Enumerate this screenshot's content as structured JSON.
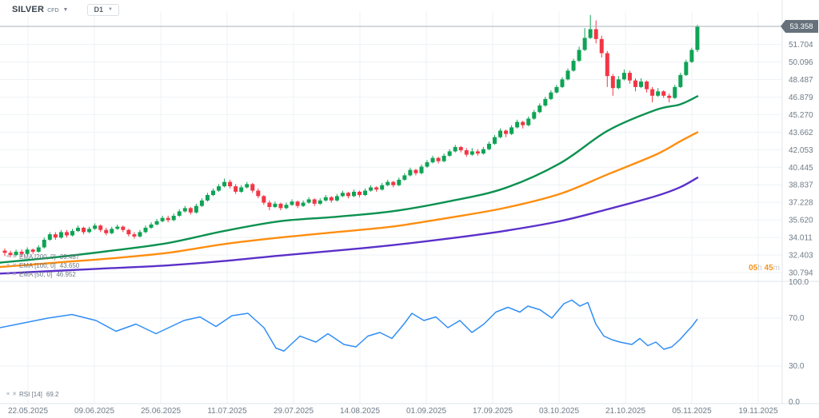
{
  "header": {
    "symbol": "SILVER",
    "instrument_type": "CFD",
    "symbol_caret": "▼",
    "timeframe": "D1",
    "timeframe_caret": "▼"
  },
  "countdown": {
    "hours": "05",
    "hours_unit": "h",
    "minutes": "45",
    "minutes_unit": "m"
  },
  "price_tag": {
    "value": "53.358",
    "bg_color": "#66717b"
  },
  "legend": {
    "menu_icon": "≡",
    "close_icon": "✕",
    "ema_rows": [
      {
        "label": "EMA [200, 0]",
        "value": "39.487"
      },
      {
        "label": "EMA [100, 0]",
        "value": "43.650"
      },
      {
        "label": "EMA [50, 0]",
        "value": "46.952"
      }
    ],
    "rsi_row": {
      "label": "RSI [14]",
      "value": "69.2"
    }
  },
  "chart_data": {
    "type": "candlestick",
    "symbol": "SILVER CFD",
    "timeframe": "D1",
    "colors": {
      "up": "#0fa355",
      "down": "#f23645",
      "grid": "#eef2f5",
      "separator": "#dfe5ea",
      "axis_text": "#6e7b87",
      "price_line": "#a7b0b8",
      "ema200": "#5b30c9",
      "ema100": "#ff8d0e",
      "ema50": "#0b9150",
      "rsi": "#2f8df5"
    },
    "current_price": 53.358,
    "price_ticks": [
      51.704,
      50.096,
      48.487,
      46.879,
      45.27,
      43.662,
      42.053,
      40.445,
      38.837,
      37.228,
      35.62,
      34.011,
      32.403,
      30.794
    ],
    "price_tick_labels": [
      "51.704",
      "50.096",
      "48.487",
      "46.879",
      "45.270",
      "43.662",
      "42.053",
      "40.445",
      "38.837",
      "37.228",
      "35.620",
      "34.011",
      "32.403",
      "30.794"
    ],
    "date_ticks": [
      "22.05.2025",
      "09.06.2025",
      "25.06.2025",
      "11.07.2025",
      "29.07.2025",
      "14.08.2025",
      "01.09.2025",
      "17.09.2025",
      "03.10.2025",
      "21.10.2025",
      "05.11.2025",
      "19.11.2025"
    ],
    "candles": [
      [
        32.8,
        33.0,
        32.3,
        32.6
      ],
      [
        32.6,
        32.8,
        32.2,
        32.4
      ],
      [
        32.4,
        32.9,
        32.3,
        32.7
      ],
      [
        32.7,
        32.9,
        32.2,
        32.5
      ],
      [
        32.5,
        33.1,
        32.4,
        32.9
      ],
      [
        32.9,
        33.0,
        32.5,
        32.7
      ],
      [
        32.7,
        33.3,
        32.6,
        33.1
      ],
      [
        33.1,
        34.0,
        33.0,
        33.8
      ],
      [
        33.8,
        34.5,
        33.7,
        34.3
      ],
      [
        34.3,
        34.5,
        33.8,
        34.0
      ],
      [
        34.0,
        34.7,
        33.9,
        34.5
      ],
      [
        34.5,
        34.7,
        34.0,
        34.2
      ],
      [
        34.2,
        34.8,
        34.1,
        34.6
      ],
      [
        34.6,
        35.1,
        34.5,
        34.9
      ],
      [
        34.9,
        35.0,
        34.3,
        34.5
      ],
      [
        34.5,
        35.0,
        34.4,
        34.8
      ],
      [
        34.8,
        35.3,
        34.7,
        35.1
      ],
      [
        35.1,
        35.2,
        34.5,
        34.7
      ],
      [
        34.7,
        34.9,
        34.2,
        34.4
      ],
      [
        34.4,
        35.0,
        34.3,
        34.8
      ],
      [
        34.8,
        35.2,
        34.7,
        35.0
      ],
      [
        35.0,
        35.1,
        34.5,
        34.7
      ],
      [
        34.7,
        34.8,
        34.1,
        34.3
      ],
      [
        34.3,
        34.5,
        33.9,
        34.1
      ],
      [
        34.1,
        34.7,
        34.0,
        34.5
      ],
      [
        34.5,
        35.1,
        34.4,
        34.9
      ],
      [
        34.9,
        35.4,
        34.8,
        35.2
      ],
      [
        35.2,
        35.7,
        35.1,
        35.5
      ],
      [
        35.5,
        36.0,
        35.4,
        35.8
      ],
      [
        35.8,
        36.0,
        35.4,
        35.6
      ],
      [
        35.6,
        36.2,
        35.5,
        36.0
      ],
      [
        36.0,
        36.6,
        35.9,
        36.4
      ],
      [
        36.4,
        36.9,
        36.3,
        36.7
      ],
      [
        36.7,
        36.8,
        36.1,
        36.3
      ],
      [
        36.3,
        37.1,
        36.2,
        36.9
      ],
      [
        36.9,
        37.6,
        36.8,
        37.4
      ],
      [
        37.4,
        38.1,
        37.3,
        37.9
      ],
      [
        37.9,
        38.5,
        37.8,
        38.3
      ],
      [
        38.3,
        38.9,
        38.2,
        38.7
      ],
      [
        38.7,
        39.4,
        38.6,
        39.1
      ],
      [
        39.1,
        39.3,
        38.5,
        38.7
      ],
      [
        38.7,
        38.9,
        38.0,
        38.2
      ],
      [
        38.2,
        38.8,
        38.1,
        38.6
      ],
      [
        38.6,
        39.1,
        38.5,
        38.9
      ],
      [
        38.9,
        39.0,
        38.1,
        38.3
      ],
      [
        38.3,
        38.5,
        37.6,
        37.8
      ],
      [
        37.8,
        37.9,
        37.0,
        37.2
      ],
      [
        37.2,
        37.4,
        36.5,
        36.8
      ],
      [
        36.8,
        37.3,
        36.7,
        37.1
      ],
      [
        37.1,
        37.2,
        36.5,
        36.7
      ],
      [
        36.7,
        37.2,
        36.6,
        37.0
      ],
      [
        37.0,
        37.5,
        36.9,
        37.3
      ],
      [
        37.3,
        37.4,
        36.7,
        36.9
      ],
      [
        36.9,
        37.4,
        36.8,
        37.2
      ],
      [
        37.2,
        37.7,
        37.1,
        37.5
      ],
      [
        37.5,
        37.6,
        36.9,
        37.1
      ],
      [
        37.1,
        37.6,
        37.0,
        37.4
      ],
      [
        37.4,
        37.9,
        37.3,
        37.7
      ],
      [
        37.7,
        37.8,
        37.2,
        37.4
      ],
      [
        37.4,
        38.0,
        37.3,
        37.8
      ],
      [
        37.8,
        38.3,
        37.7,
        38.1
      ],
      [
        38.1,
        38.2,
        37.6,
        37.8
      ],
      [
        37.8,
        38.4,
        37.7,
        38.2
      ],
      [
        38.2,
        38.3,
        37.7,
        37.9
      ],
      [
        37.9,
        38.5,
        37.8,
        38.3
      ],
      [
        38.3,
        38.8,
        38.2,
        38.6
      ],
      [
        38.6,
        38.7,
        38.2,
        38.4
      ],
      [
        38.4,
        39.0,
        38.3,
        38.8
      ],
      [
        38.8,
        39.3,
        38.7,
        39.1
      ],
      [
        39.1,
        39.2,
        38.6,
        38.8
      ],
      [
        38.8,
        39.5,
        38.7,
        39.3
      ],
      [
        39.3,
        39.9,
        39.2,
        39.7
      ],
      [
        39.7,
        40.4,
        39.6,
        40.2
      ],
      [
        40.2,
        40.3,
        39.7,
        39.9
      ],
      [
        39.9,
        40.7,
        39.8,
        40.5
      ],
      [
        40.5,
        41.1,
        40.4,
        40.9
      ],
      [
        40.9,
        41.5,
        40.8,
        41.3
      ],
      [
        41.3,
        41.4,
        40.8,
        41.0
      ],
      [
        41.0,
        41.7,
        40.9,
        41.5
      ],
      [
        41.5,
        42.1,
        41.4,
        41.9
      ],
      [
        41.9,
        42.5,
        41.8,
        42.3
      ],
      [
        42.3,
        42.4,
        41.8,
        42.0
      ],
      [
        42.0,
        42.2,
        41.4,
        41.6
      ],
      [
        41.6,
        42.2,
        41.5,
        41.9
      ],
      [
        41.9,
        42.1,
        41.5,
        41.7
      ],
      [
        41.7,
        42.3,
        41.6,
        42.1
      ],
      [
        42.1,
        42.8,
        42.0,
        42.6
      ],
      [
        42.6,
        43.4,
        42.5,
        43.2
      ],
      [
        43.2,
        44.0,
        43.1,
        43.8
      ],
      [
        43.8,
        43.9,
        43.2,
        43.5
      ],
      [
        43.5,
        44.3,
        43.4,
        44.1
      ],
      [
        44.1,
        44.8,
        44.0,
        44.6
      ],
      [
        44.6,
        44.7,
        44.0,
        44.3
      ],
      [
        44.3,
        45.1,
        44.2,
        44.9
      ],
      [
        44.9,
        45.7,
        44.8,
        45.5
      ],
      [
        45.5,
        46.3,
        45.4,
        46.1
      ],
      [
        46.1,
        46.9,
        46.0,
        46.7
      ],
      [
        46.7,
        47.5,
        46.6,
        47.3
      ],
      [
        47.3,
        48.0,
        47.2,
        47.8
      ],
      [
        47.8,
        48.7,
        47.7,
        48.5
      ],
      [
        48.5,
        49.5,
        48.4,
        49.3
      ],
      [
        49.3,
        50.4,
        49.2,
        50.2
      ],
      [
        50.2,
        51.5,
        50.1,
        51.2
      ],
      [
        51.2,
        53.2,
        51.1,
        52.3
      ],
      [
        52.3,
        54.4,
        52.2,
        53.1
      ],
      [
        53.1,
        53.9,
        51.8,
        52.2
      ],
      [
        52.2,
        52.5,
        50.5,
        50.9
      ],
      [
        50.9,
        51.1,
        47.8,
        48.8
      ],
      [
        48.8,
        49.0,
        47.0,
        47.7
      ],
      [
        47.7,
        48.8,
        47.6,
        48.5
      ],
      [
        48.5,
        49.4,
        48.4,
        49.1
      ],
      [
        49.1,
        49.3,
        48.1,
        48.4
      ],
      [
        48.4,
        48.6,
        47.4,
        47.8
      ],
      [
        47.8,
        48.6,
        47.7,
        48.3
      ],
      [
        48.3,
        48.4,
        47.3,
        47.6
      ],
      [
        47.6,
        47.8,
        46.4,
        47.0
      ],
      [
        47.0,
        47.7,
        46.9,
        47.4
      ],
      [
        47.4,
        47.5,
        46.8,
        47.0
      ],
      [
        47.0,
        47.2,
        46.4,
        46.8
      ],
      [
        46.8,
        48.0,
        46.7,
        47.8
      ],
      [
        47.8,
        49.1,
        47.7,
        48.9
      ],
      [
        48.9,
        50.3,
        48.8,
        50.1
      ],
      [
        50.1,
        51.4,
        50.0,
        51.2
      ],
      [
        51.2,
        53.5,
        51.0,
        53.358
      ]
    ],
    "overlays": [
      {
        "name": "EMA 200",
        "color_key": "ema200",
        "points": [
          [
            0,
            30.7
          ],
          [
            70,
            30.95
          ],
          [
            140,
            31.2
          ],
          [
            210,
            31.45
          ],
          [
            280,
            31.85
          ],
          [
            350,
            32.35
          ],
          [
            420,
            32.8
          ],
          [
            490,
            33.3
          ],
          [
            560,
            33.9
          ],
          [
            630,
            34.6
          ],
          [
            700,
            35.5
          ],
          [
            760,
            36.6
          ],
          [
            820,
            37.8
          ],
          [
            850,
            38.6
          ],
          [
            872,
            39.49
          ]
        ]
      },
      {
        "name": "EMA 100",
        "color_key": "ema100",
        "points": [
          [
            0,
            31.3
          ],
          [
            70,
            31.7
          ],
          [
            140,
            32.1
          ],
          [
            210,
            32.6
          ],
          [
            280,
            33.4
          ],
          [
            350,
            34.0
          ],
          [
            420,
            34.5
          ],
          [
            490,
            35.0
          ],
          [
            560,
            35.8
          ],
          [
            630,
            36.7
          ],
          [
            700,
            38.0
          ],
          [
            760,
            39.8
          ],
          [
            820,
            41.6
          ],
          [
            850,
            42.8
          ],
          [
            872,
            43.65
          ]
        ]
      },
      {
        "name": "EMA 50",
        "color_key": "ema50",
        "points": [
          [
            0,
            31.7
          ],
          [
            70,
            32.2
          ],
          [
            140,
            32.8
          ],
          [
            210,
            33.5
          ],
          [
            280,
            34.6
          ],
          [
            350,
            35.5
          ],
          [
            420,
            35.9
          ],
          [
            490,
            36.4
          ],
          [
            560,
            37.3
          ],
          [
            630,
            38.5
          ],
          [
            700,
            40.8
          ],
          [
            760,
            43.8
          ],
          [
            820,
            45.7
          ],
          [
            850,
            46.2
          ],
          [
            872,
            46.95
          ]
        ]
      }
    ],
    "rsi": {
      "name": "RSI [14]",
      "current": 69.2,
      "ticks": [
        100.0,
        70.0,
        30.0,
        0.0
      ],
      "tick_labels": [
        "100.0",
        "70.0",
        "30.0",
        "0.0"
      ],
      "points": [
        [
          0,
          62
        ],
        [
          30,
          66
        ],
        [
          60,
          70
        ],
        [
          90,
          73
        ],
        [
          120,
          68
        ],
        [
          145,
          59
        ],
        [
          170,
          65
        ],
        [
          195,
          57
        ],
        [
          230,
          68
        ],
        [
          250,
          71
        ],
        [
          270,
          63
        ],
        [
          290,
          72
        ],
        [
          310,
          74
        ],
        [
          330,
          62
        ],
        [
          345,
          45
        ],
        [
          355,
          42.5
        ],
        [
          375,
          55
        ],
        [
          395,
          50
        ],
        [
          410,
          57
        ],
        [
          430,
          48
        ],
        [
          445,
          46
        ],
        [
          460,
          55
        ],
        [
          475,
          58
        ],
        [
          490,
          53
        ],
        [
          505,
          65
        ],
        [
          515,
          74
        ],
        [
          530,
          68
        ],
        [
          545,
          71
        ],
        [
          560,
          62
        ],
        [
          575,
          68
        ],
        [
          590,
          58
        ],
        [
          605,
          65
        ],
        [
          620,
          75
        ],
        [
          635,
          79
        ],
        [
          650,
          75
        ],
        [
          660,
          80
        ],
        [
          675,
          77
        ],
        [
          690,
          70
        ],
        [
          705,
          82
        ],
        [
          715,
          85
        ],
        [
          725,
          80
        ],
        [
          735,
          83
        ],
        [
          745,
          65
        ],
        [
          755,
          55
        ],
        [
          765,
          52
        ],
        [
          775,
          50
        ],
        [
          790,
          48
        ],
        [
          800,
          53
        ],
        [
          810,
          47
        ],
        [
          820,
          50
        ],
        [
          830,
          44
        ],
        [
          840,
          46
        ],
        [
          850,
          52
        ],
        [
          858,
          58
        ],
        [
          865,
          63
        ],
        [
          872,
          69.2
        ]
      ]
    }
  }
}
